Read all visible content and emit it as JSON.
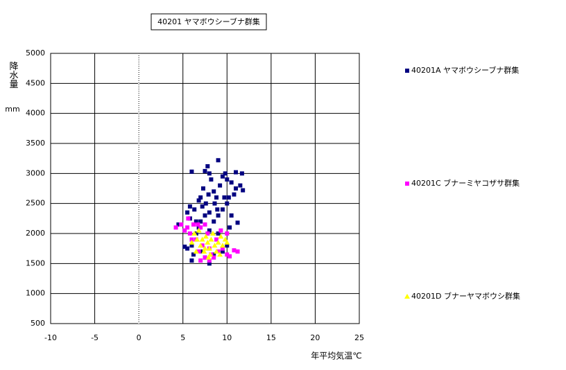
{
  "chart_data": {
    "type": "scatter",
    "title": "40201 ヤマボウシーブナ群集",
    "x_label": "年平均気温℃",
    "y_label": "降水量",
    "y_unit": "mm",
    "xlim": [
      -10,
      25
    ],
    "xticks": [
      -10,
      -5,
      0,
      5,
      10,
      15,
      20,
      25
    ],
    "ylim": [
      500,
      5000
    ],
    "yticks": [
      500,
      1000,
      1500,
      2000,
      2500,
      3000,
      3500,
      4000,
      4500,
      5000
    ],
    "grid": true,
    "legend": "right",
    "series": [
      {
        "name": "40201A ヤマボウシーブナ群集",
        "color": "#000080",
        "marker": "square",
        "x": [
          4.5,
          5.5,
          5.8,
          6,
          6.5,
          6.8,
          7,
          7.5,
          7.8,
          8,
          8.2,
          7.3,
          7.6,
          8.5,
          8.8,
          9,
          9.2,
          9.5,
          9.8,
          10,
          10.2,
          10.5,
          11,
          11.5,
          11.8,
          11.7,
          11,
          10.8,
          10,
          9.5,
          9,
          8.5,
          8,
          7.5,
          7,
          6.5,
          6,
          5.5,
          6,
          6.2,
          7,
          7.5,
          8,
          8.5,
          9.5,
          10,
          9,
          8,
          6.8,
          5.8,
          6.3,
          7.2,
          8.6,
          10.5,
          11.2,
          10.3,
          5.2,
          9.7,
          8.9,
          7.9
        ],
        "y": [
          2150,
          2350,
          2450,
          3030,
          2200,
          2550,
          2600,
          3040,
          3120,
          3000,
          2900,
          2750,
          2500,
          2700,
          2600,
          3220,
          2800,
          2950,
          3000,
          2900,
          2600,
          2850,
          3020,
          2800,
          2720,
          3000,
          2750,
          2650,
          2500,
          2400,
          2300,
          2200,
          2350,
          2300,
          2200,
          2000,
          1800,
          1750,
          1550,
          1650,
          1700,
          1600,
          1500,
          1650,
          1700,
          1800,
          2000,
          2050,
          2100,
          2250,
          2400,
          2450,
          2500,
          2300,
          2180,
          2100,
          1780,
          2600,
          2400,
          2650
        ]
      },
      {
        "name": "40201C ブナーミヤコザサ群集",
        "color": "#ff00ff",
        "marker": "square",
        "x": [
          4.2,
          4.8,
          5.2,
          5.6,
          5.8,
          6.2,
          6.5,
          7,
          7.5,
          7.2,
          6.8,
          7,
          7.5,
          8,
          8.5,
          8,
          9,
          9.5,
          10,
          10.3,
          10.8,
          11.2,
          8.8,
          9.3,
          10,
          7.8,
          6,
          5.5,
          6.7,
          8.2
        ],
        "y": [
          2100,
          2150,
          2050,
          2250,
          2000,
          2150,
          1900,
          2100,
          2150,
          1800,
          1700,
          1550,
          1600,
          1550,
          1600,
          1750,
          1700,
          1750,
          1650,
          1620,
          1720,
          1700,
          1900,
          2050,
          2000,
          2000,
          1900,
          2100,
          2150,
          1650
        ]
      },
      {
        "name": "40201D ブナーヤマボウシ群集",
        "color": "#ffff00",
        "marker": "triangle",
        "x": [
          6,
          6.3,
          6.6,
          7,
          7.2,
          7.4,
          7.6,
          7.8,
          8,
          8.2,
          8.4,
          8.6,
          8.8,
          9,
          9.2,
          9.5,
          9.8,
          10,
          6.8,
          7.5,
          8.1,
          9.3,
          6.5,
          7.9
        ],
        "y": [
          1850,
          2000,
          1900,
          1800,
          1900,
          1700,
          1950,
          1850,
          1750,
          1900,
          2000,
          1800,
          1700,
          1850,
          1650,
          1800,
          1900,
          1850,
          2050,
          1750,
          1650,
          1950,
          1700,
          1600
        ]
      }
    ]
  }
}
